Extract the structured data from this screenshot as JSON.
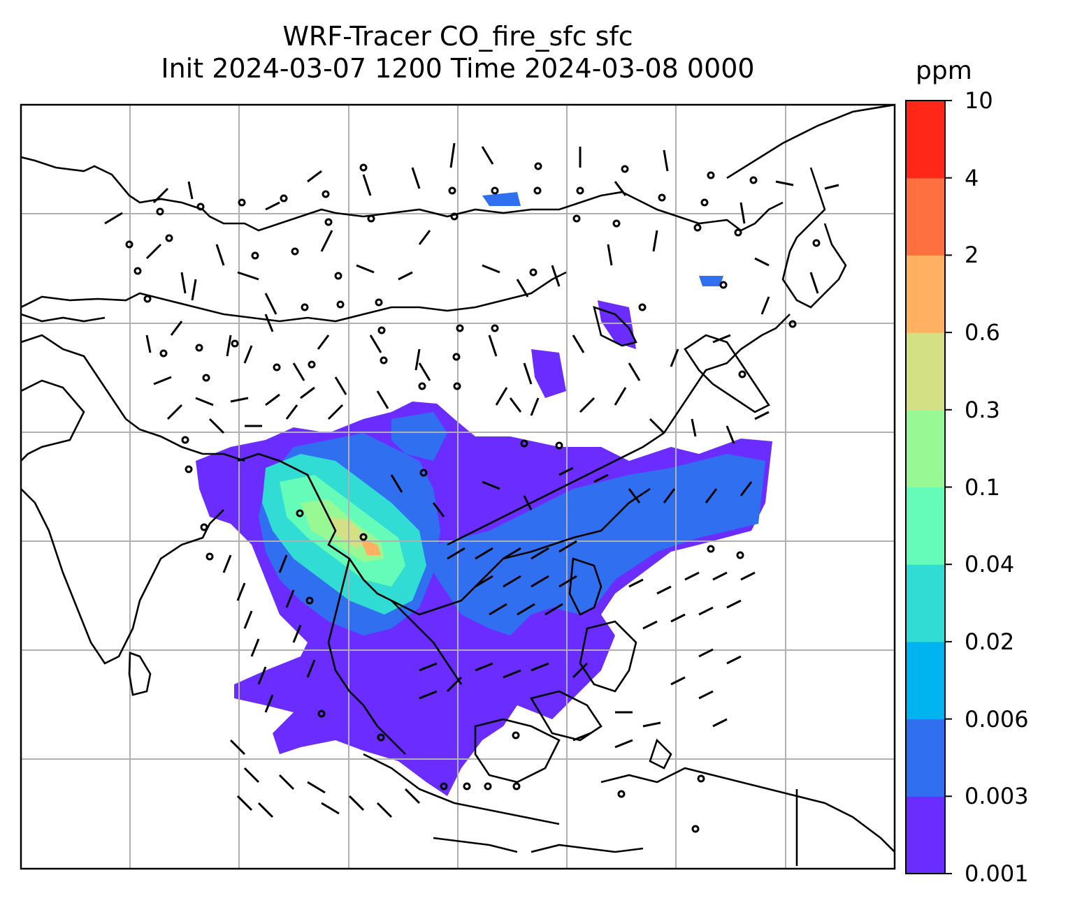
{
  "title": {
    "line1": "WRF-Tracer CO_fire_sfc sfc",
    "line2": "Init 2024-03-07 1200 Time 2024-03-08 0000"
  },
  "colorbar": {
    "unit": "ppm",
    "levels": [
      "0.001",
      "0.003",
      "0.006",
      "0.02",
      "0.04",
      "0.1",
      "0.3",
      "0.6",
      "2",
      "4",
      "10"
    ],
    "colors": [
      "#6a2cff",
      "#3070f0",
      "#00b4f0",
      "#30dcd4",
      "#64fcb8",
      "#98f894",
      "#d4e084",
      "#ffb060",
      "#ff7040",
      "#ff2818"
    ]
  },
  "map": {
    "grid": "on",
    "layers": [
      "coastlines",
      "country-borders",
      "wind-barbs",
      "CO-fire-concentration"
    ]
  }
}
